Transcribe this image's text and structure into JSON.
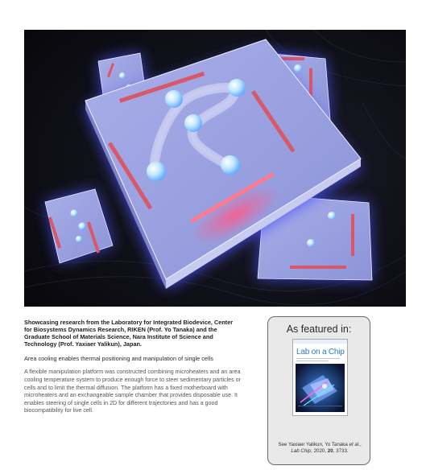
{
  "caption": {
    "headline": "Showcasing research from the Laboratory for Integrated Biodevice, Center for Biosystems Dynamics Research, RIKEN (Prof. Yo Tanaka) and the Graduate School of Materials Science, Nara Institute of Science and Technology (Prof. Yaxiaer Yalikun), Japan.",
    "subtitle": "Area cooling enables thermal positioning and manipulation of single cells",
    "abstract": "A flexible manipulation platform was constructed combining microheaters and an area cooling temperature system to produce enough force to steer sedimentary particles or cells and to limit the thermal diffusion. The platform has a fixed motherboard with microheaters and an exchangeable sample chamber that provides disposable use. It enables steering of single cells in 2D for different trajectories and has a good biocompatibility for live cell."
  },
  "feature": {
    "heading": "As featured in:",
    "journal_title": "Lab on a Chip",
    "citation_line1_prefix": "See Yaxiaer Yalikun, Yo Tanaka ",
    "citation_etal": "et al.",
    "citation_line1_suffix": ",",
    "citation_journal": "Lab Chip",
    "citation_year": ", 2020, ",
    "citation_volume": "20",
    "citation_pages": ", 3733."
  },
  "colors": {
    "glow": "#4b53ff",
    "chip_face": "#9ea6e4",
    "heater": "#d8586a",
    "background": "#0c0c12"
  }
}
